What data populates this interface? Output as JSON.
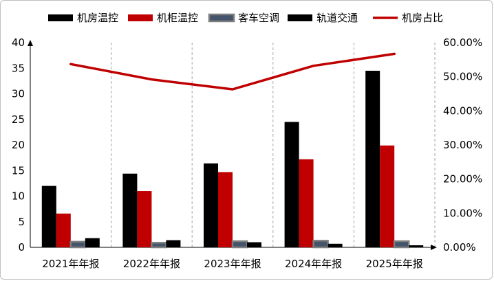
{
  "chart_data": {
    "type": "bar",
    "categories": [
      "2021年年报",
      "2022年年报",
      "2023年年报",
      "2024年年报",
      "2025年年报"
    ],
    "series": [
      {
        "name": "机房温控",
        "kind": "bar",
        "axis": "left",
        "color": "#000000",
        "values": [
          12.0,
          14.4,
          16.4,
          24.5,
          34.5
        ]
      },
      {
        "name": "机柜温控",
        "kind": "bar",
        "axis": "left",
        "color": "#c00000",
        "values": [
          6.6,
          11.0,
          14.7,
          17.2,
          19.9
        ]
      },
      {
        "name": "客车空调",
        "kind": "bar",
        "axis": "left",
        "color": "#44546a",
        "outline": "#7f7f7f",
        "values": [
          1.1,
          0.9,
          1.2,
          1.3,
          1.2
        ]
      },
      {
        "name": "轨道交通",
        "kind": "bar",
        "axis": "left",
        "color": "#000000",
        "values": [
          1.8,
          1.4,
          1.0,
          0.7,
          0.4
        ]
      },
      {
        "name": "机房占比",
        "kind": "line",
        "axis": "right",
        "color": "#c00000",
        "values": [
          0.537,
          0.492,
          0.463,
          0.532,
          0.567
        ]
      }
    ],
    "y_left": {
      "min": 0,
      "max": 40,
      "ticks": [
        "0",
        "5",
        "10",
        "15",
        "20",
        "25",
        "30",
        "35",
        "40"
      ]
    },
    "y_right": {
      "min": 0,
      "max": 0.6,
      "ticks": [
        "0.00%",
        "10.00%",
        "20.00%",
        "30.00%",
        "40.00%",
        "50.00%",
        "60.00%"
      ]
    },
    "grid": "vertical-dashed",
    "legend_position": "top"
  }
}
